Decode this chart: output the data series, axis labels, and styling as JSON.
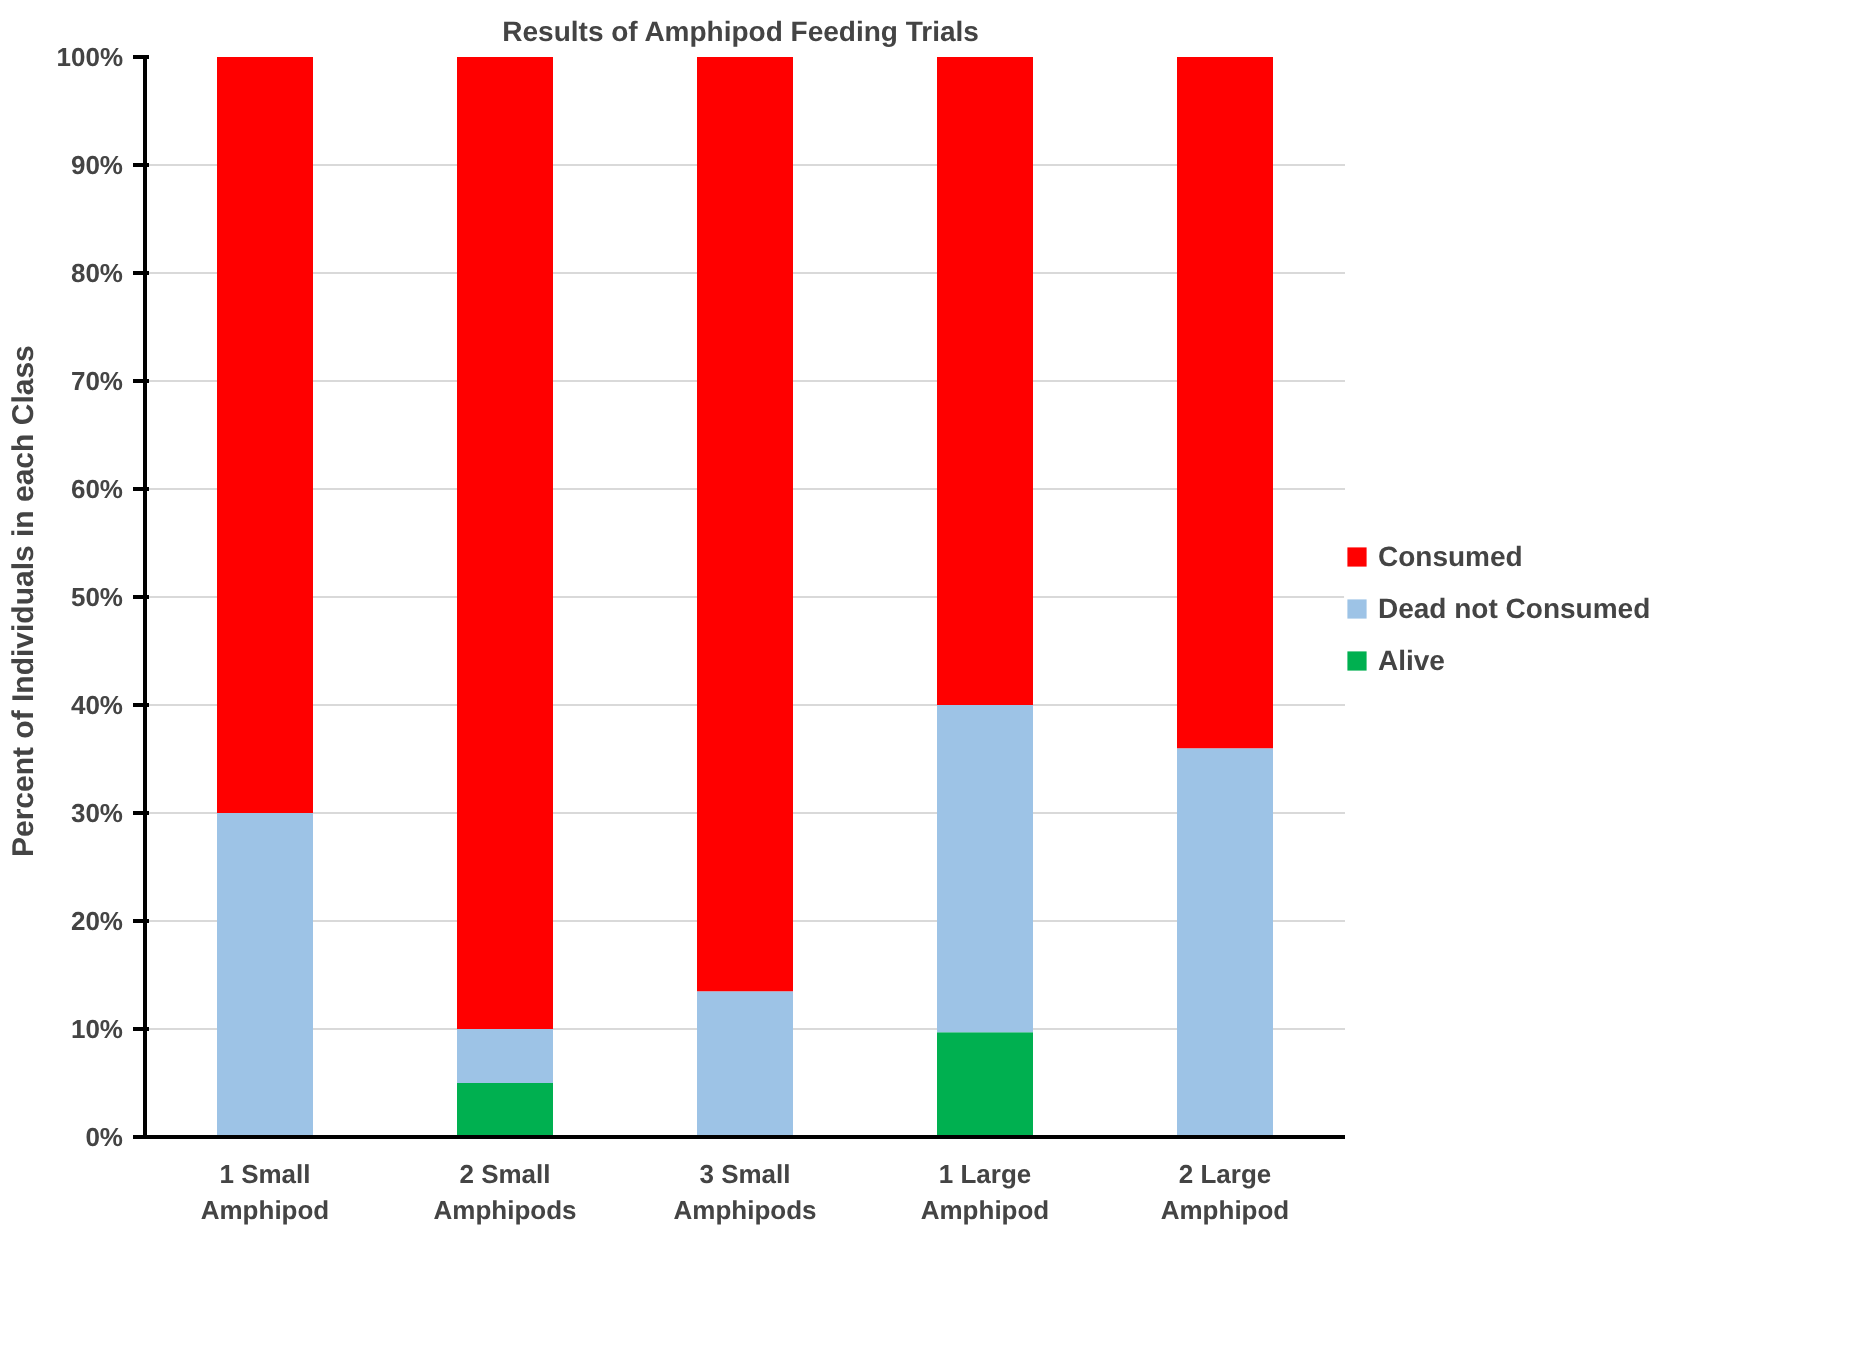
{
  "chart_data": {
    "type": "bar",
    "title": "Results of Amphipod  Feeding Trials",
    "ylabel": "Percent of Individuals  in each Class",
    "categories": [
      "1 Small Amphipod",
      "2 Small Amphipods",
      "3 Small Amphipods",
      "1 Large Amphipod",
      "2 Large Amphipod"
    ],
    "stacked": true,
    "series": [
      {
        "name": "Alive",
        "color": "#00b050",
        "values": [
          0,
          5,
          0,
          9.7,
          0
        ]
      },
      {
        "name": "Dead not Consumed",
        "color": "#9dc3e6",
        "values": [
          30,
          5,
          13.5,
          30.3,
          36
        ]
      },
      {
        "name": "Consumed",
        "color": "#ff0000",
        "values": [
          70,
          90,
          86.5,
          60,
          64
        ]
      }
    ],
    "ylim": [
      0,
      100
    ],
    "yticks": [
      {
        "value": 0,
        "label": "0%"
      },
      {
        "value": 10,
        "label": "10%"
      },
      {
        "value": 20,
        "label": "20%"
      },
      {
        "value": 30,
        "label": "30%"
      },
      {
        "value": 40,
        "label": "40%"
      },
      {
        "value": 50,
        "label": "50%"
      },
      {
        "value": 60,
        "label": "60%"
      },
      {
        "value": 70,
        "label": "70%"
      },
      {
        "value": 80,
        "label": "80%"
      },
      {
        "value": 90,
        "label": "90%"
      },
      {
        "value": 100,
        "label": "100%"
      }
    ],
    "grid": "y",
    "legend": "right"
  }
}
